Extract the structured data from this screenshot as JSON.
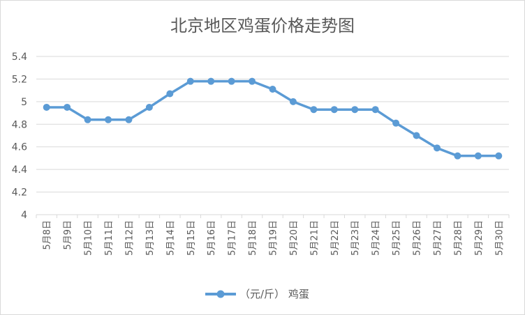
{
  "chart_data": {
    "type": "line",
    "title": "北京地区鸡蛋价格走势图",
    "xlabel": "",
    "ylabel": "",
    "categories": [
      "5月8日",
      "5月9日",
      "5月10日",
      "5月11日",
      "5月12日",
      "5月13日",
      "5月14日",
      "5月15日",
      "5月16日",
      "5月17日",
      "5月18日",
      "5月19日",
      "5月20日",
      "5月21日",
      "5月22日",
      "5月23日",
      "5月24日",
      "5月25日",
      "5月26日",
      "5月27日",
      "5月28日",
      "5月29日",
      "5月30日"
    ],
    "series": [
      {
        "name": "（元/斤） 鸡蛋",
        "color": "#5b9bd5",
        "values": [
          4.95,
          4.95,
          4.84,
          4.84,
          4.84,
          4.95,
          5.07,
          5.18,
          5.18,
          5.18,
          5.18,
          5.11,
          5.0,
          4.93,
          4.93,
          4.93,
          4.93,
          4.81,
          4.7,
          4.59,
          4.52,
          4.52,
          4.52
        ]
      }
    ],
    "ylim": [
      4,
      5.4
    ],
    "yticks": [
      "4",
      "4.2",
      "4.4",
      "4.6",
      "4.8",
      "5",
      "5.2",
      "5.4"
    ],
    "grid": true,
    "legend": "bottom"
  }
}
